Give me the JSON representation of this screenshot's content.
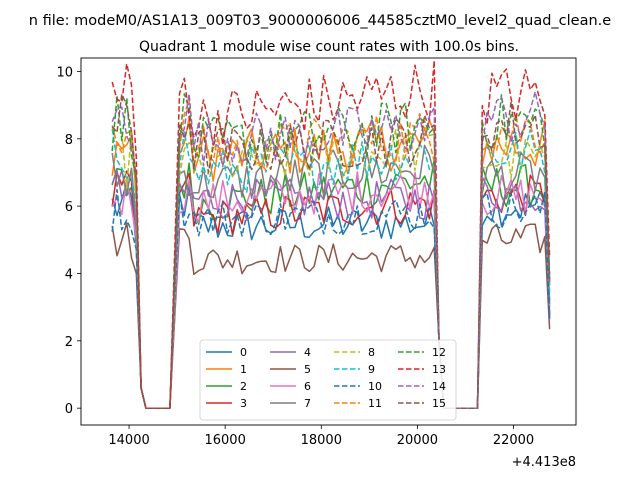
{
  "chart_data": {
    "type": "line",
    "suptitle": "n file: modeM0/AS1A13_009T03_9000006006_44585cztM0_level2_quad_clean.e",
    "title": "Quadrant 1 module wise count rates with 100.0s bins.",
    "xlabel": "",
    "ylabel": "",
    "x_offset_label": "+4.413e8",
    "xlim": [
      13000,
      23300
    ],
    "ylim": [
      -0.5,
      10.4
    ],
    "xticks": [
      14000,
      16000,
      18000,
      20000,
      22000
    ],
    "yticks": [
      0,
      2,
      4,
      6,
      8,
      10
    ],
    "grid": false,
    "legend_position": "lower-center",
    "legend_columns": 4,
    "segments": [
      {
        "x_start": 13650,
        "x_end": 14250,
        "step": 100
      },
      {
        "x_start": 14250,
        "x_end": 14850,
        "step": 100
      },
      {
        "x_start": 15050,
        "x_end": 20350,
        "step": 100
      },
      {
        "x_start": 20350,
        "x_end": 21250,
        "step": 100
      },
      {
        "x_start": 21250,
        "x_end": 22750,
        "step": 100
      }
    ],
    "series": [
      {
        "name": "0",
        "color": "#1f77b4",
        "dash": "solid",
        "level": 5.4,
        "level2": 5.5,
        "first_peak": 6.0
      },
      {
        "name": "1",
        "color": "#ff7f0e",
        "dash": "solid",
        "level": 7.4,
        "level2": 7.9,
        "first_peak": 7.8
      },
      {
        "name": "2",
        "color": "#2ca02c",
        "dash": "solid",
        "level": 6.0,
        "level2": 6.8,
        "first_peak": 6.6
      },
      {
        "name": "3",
        "color": "#d62728",
        "dash": "solid",
        "level": 5.6,
        "level2": 6.1,
        "first_peak": 6.3
      },
      {
        "name": "4",
        "color": "#9467bd",
        "dash": "solid",
        "level": 6.2,
        "level2": 6.2,
        "first_peak": 6.4
      },
      {
        "name": "5",
        "color": "#8c564b",
        "dash": "solid",
        "level": 4.4,
        "level2": 4.5,
        "first_peak": 5.0
      },
      {
        "name": "6",
        "color": "#e377c2",
        "dash": "solid",
        "level": 6.1,
        "level2": 6.6,
        "first_peak": 6.3
      },
      {
        "name": "7",
        "color": "#7f7f7f",
        "dash": "solid",
        "level": 6.6,
        "level2": 7.2,
        "first_peak": 6.9
      },
      {
        "name": "8",
        "color": "#bcbd22",
        "dash": "dashed",
        "level": 7.2,
        "level2": 7.7,
        "first_peak": 7.4
      },
      {
        "name": "9",
        "color": "#17becf",
        "dash": "dashed",
        "level": 6.9,
        "level2": 7.6,
        "first_peak": 7.6
      },
      {
        "name": "10",
        "color": "#1f77b4",
        "dash": "dashed",
        "level": 5.6,
        "level2": 5.8,
        "first_peak": 5.9
      },
      {
        "name": "11",
        "color": "#ff7f0e",
        "dash": "dashed",
        "level": 7.6,
        "level2": 8.1,
        "first_peak": 8.3
      },
      {
        "name": "12",
        "color": "#2ca02c",
        "dash": "dashed",
        "level": 7.8,
        "level2": 8.4,
        "first_peak": 8.5
      },
      {
        "name": "13",
        "color": "#d62728",
        "dash": "dashed",
        "level": 8.5,
        "level2": 9.5,
        "first_peak": 9.3
      },
      {
        "name": "14",
        "color": "#9467bd",
        "dash": "dashed",
        "level": 7.9,
        "level2": 8.3,
        "first_peak": 8.6
      },
      {
        "name": "15",
        "color": "#8c564b",
        "dash": "dashed",
        "level": 7.6,
        "level2": 8.0,
        "first_peak": 8.4
      }
    ]
  }
}
